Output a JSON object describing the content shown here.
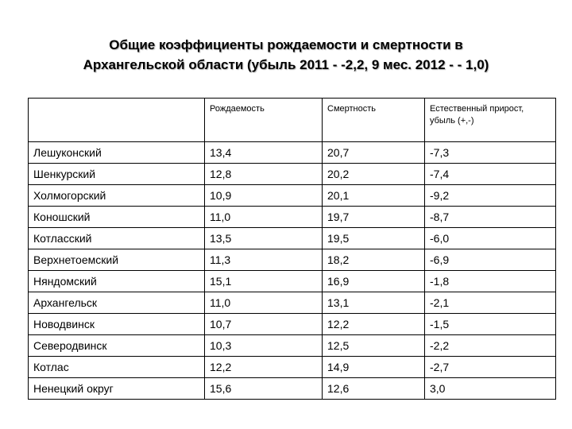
{
  "title": {
    "line1": "Общие коэффициенты рождаемости и смертности в",
    "line2": "Архангельской области (убыль 2011 - -2,2, 9 мес. 2012 - - 1,0)"
  },
  "table": {
    "headers": {
      "district": "",
      "birth": "Рождаемость",
      "death": "Смертность",
      "natural": "Естественный прирост, убыль (+,-)"
    },
    "rows": [
      {
        "district": "Лешуконский",
        "birth": "13,4",
        "death": "20,7",
        "natural": "-7,3"
      },
      {
        "district": "Шенкурский",
        "birth": "12,8",
        "death": "20,2",
        "natural": "-7,4"
      },
      {
        "district": "Холмогорский",
        "birth": "10,9",
        "death": "20,1",
        "natural": "-9,2"
      },
      {
        "district": "Коношский",
        "birth": "11,0",
        "death": "19,7",
        "natural": "-8,7"
      },
      {
        "district": "Котласский",
        "birth": "13,5",
        "death": "19,5",
        "natural": "-6,0"
      },
      {
        "district": "Верхнетоемский",
        "birth": "11,3",
        "death": "18,2",
        "natural": "-6,9"
      },
      {
        "district": "Няндомский",
        "birth": "15,1",
        "death": "16,9",
        "natural": "-1,8"
      },
      {
        "district": "Архангельск",
        "birth": "11,0",
        "death": "13,1",
        "natural": "-2,1"
      },
      {
        "district": "Новодвинск",
        "birth": "10,7",
        "death": "12,2",
        "natural": "-1,5"
      },
      {
        "district": "Северодвинск",
        "birth": "10,3",
        "death": "12,5",
        "natural": "-2,2"
      },
      {
        "district": "Котлас",
        "birth": "12,2",
        "death": "14,9",
        "natural": "-2,7"
      },
      {
        "district": "Ненецкий округ",
        "birth": "15,6",
        "death": "12,6",
        "natural": "3,0"
      }
    ]
  }
}
